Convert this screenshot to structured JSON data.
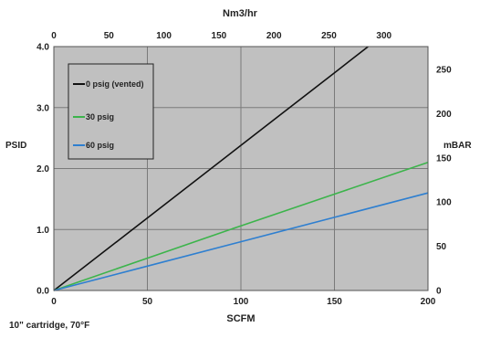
{
  "chart_data": {
    "type": "line",
    "top_axis_label": "Nm3/hr",
    "left_axis_label": "PSID",
    "right_axis_label": "mBAR",
    "bottom_axis_label": "SCFM",
    "footnote": "10\" cartridge, 70°F",
    "x": {
      "min": 0,
      "max": 200,
      "ticks": [
        0,
        50,
        100,
        150,
        200
      ],
      "tick_labels": [
        "0",
        "50",
        "100",
        "150",
        "200"
      ]
    },
    "y": {
      "min": 0,
      "max": 4,
      "ticks": [
        0,
        1,
        2,
        3,
        4
      ],
      "tick_labels": [
        "0.0",
        "1.0",
        "2.0",
        "3.0",
        "4.0"
      ]
    },
    "x2": {
      "min": 0,
      "max": 340,
      "ticks": [
        0,
        50,
        100,
        150,
        200,
        250,
        300
      ],
      "tick_labels": [
        "0",
        "50",
        "100",
        "150",
        "200",
        "250",
        "300"
      ]
    },
    "y2": {
      "min": 0,
      "max": 275.8,
      "ticks": [
        0,
        50,
        100,
        150,
        200,
        250
      ],
      "tick_labels": [
        "0",
        "50",
        "100",
        "150",
        "200",
        "250"
      ]
    },
    "grid": true,
    "legend_position": "top-left",
    "background_color": "#c0c0c0",
    "series": [
      {
        "name": "0 psig (vented)",
        "color": "#111111",
        "x": [
          0,
          50,
          100,
          150,
          168
        ],
        "y": [
          0,
          1.19,
          2.38,
          3.57,
          4.0
        ]
      },
      {
        "name": "30 psig",
        "color": "#3cb44b",
        "x": [
          0,
          50,
          100,
          150,
          200
        ],
        "y": [
          0,
          0.53,
          1.06,
          1.58,
          2.1
        ]
      },
      {
        "name": "60 psig",
        "color": "#2e7fd0",
        "x": [
          0,
          50,
          100,
          150,
          200
        ],
        "y": [
          0,
          0.4,
          0.8,
          1.2,
          1.6
        ]
      }
    ]
  }
}
